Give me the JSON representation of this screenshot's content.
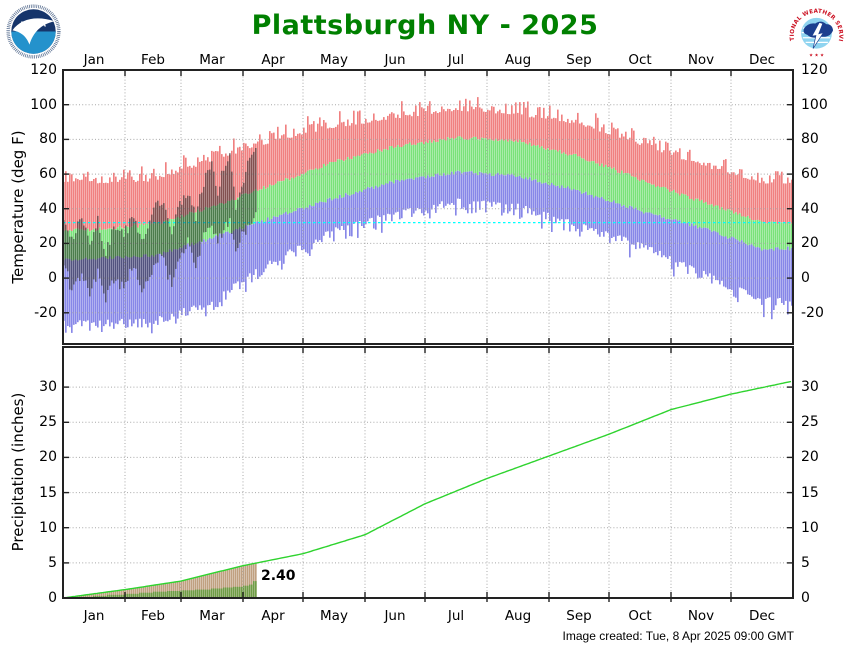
{
  "header": {
    "logo_noaa_alt": "NOAA",
    "logo_nws_alt": "NATIONAL WEATHER SERVICE"
  },
  "footer": {
    "created": "Image created: Tue, 8 Apr 2025 09:00 GMT"
  },
  "months": [
    "Jan",
    "Feb",
    "Mar",
    "Apr",
    "May",
    "Jun",
    "Jul",
    "Aug",
    "Sep",
    "Oct",
    "Nov",
    "Dec"
  ],
  "month_start_days": [
    0,
    31,
    59,
    90,
    120,
    151,
    181,
    212,
    243,
    273,
    304,
    334,
    365
  ],
  "colors": {
    "title": "#008000",
    "record_high_band": "#f08080",
    "normal_band": "#79e279",
    "record_low_band": "#8787e8",
    "observed_temp": "rgba(40,40,40,0.55)",
    "freezing_line": "#00ffff",
    "normal_precip_line": "#2ed32e",
    "normal_precip_fill": "#c0a080",
    "observed_precip_fill": "#6e9d46",
    "grid": "#a8a8a8",
    "frame": "#222222"
  },
  "render_seed": 20250408,
  "chart_data": [
    {
      "type": "area",
      "panel": "temperature",
      "title": "Plattsburgh NY - 2025",
      "xlabel": "",
      "ylabel": "Temperature (deg F)",
      "ylim": [
        -38,
        120
      ],
      "yticks": [
        120,
        100,
        80,
        60,
        40,
        20,
        0,
        -20
      ],
      "grid": true,
      "legend_position": "none",
      "freezing_line_f": 32,
      "monthly_mid_days": [
        15,
        45,
        74,
        105,
        135,
        166,
        196,
        227,
        258,
        288,
        319,
        349
      ],
      "series": [
        {
          "name": "record-high-band",
          "monthly_values": [
            57,
            58,
            70,
            81,
            89,
            94,
            99,
            96,
            91,
            79,
            67,
            57
          ]
        },
        {
          "name": "normal-high",
          "monthly_values": [
            28,
            31,
            41,
            54,
            67,
            76,
            81,
            79,
            70,
            57,
            44,
            32
          ]
        },
        {
          "name": "normal-low",
          "monthly_values": [
            11,
            13,
            23,
            35,
            46,
            56,
            61,
            59,
            50,
            39,
            29,
            17
          ]
        },
        {
          "name": "record-low-band",
          "monthly_values": [
            -27,
            -26,
            -14,
            9,
            26,
            36,
            43,
            40,
            29,
            18,
            2,
            -14
          ]
        },
        {
          "name": "observed-temperature",
          "end_day": 96,
          "anchors_day_low_high": [
            [
              0,
              10,
              30
            ],
            [
              4,
              -8,
              22
            ],
            [
              9,
              2,
              35
            ],
            [
              13,
              -10,
              18
            ],
            [
              17,
              5,
              33
            ],
            [
              21,
              -12,
              15
            ],
            [
              25,
              0,
              28
            ],
            [
              30,
              -5,
              25
            ],
            [
              35,
              8,
              35
            ],
            [
              39,
              -10,
              20
            ],
            [
              44,
              2,
              40
            ],
            [
              49,
              14,
              45
            ],
            [
              54,
              -5,
              28
            ],
            [
              58,
              10,
              42
            ],
            [
              62,
              20,
              48
            ],
            [
              66,
              5,
              35
            ],
            [
              70,
              25,
              55
            ],
            [
              74,
              30,
              67
            ],
            [
              77,
              20,
              50
            ],
            [
              80,
              28,
              65
            ],
            [
              83,
              32,
              70
            ],
            [
              86,
              15,
              40
            ],
            [
              89,
              25,
              52
            ],
            [
              92,
              30,
              68
            ],
            [
              96,
              35,
              74
            ]
          ]
        }
      ]
    },
    {
      "type": "line",
      "panel": "precipitation",
      "title": "",
      "xlabel": "",
      "ylabel": "Precipitation (inches)",
      "ylim": [
        0,
        35.7
      ],
      "yticks": [
        30,
        25,
        20,
        15,
        10,
        5,
        0
      ],
      "grid": true,
      "legend_position": "none",
      "series": [
        {
          "name": "normal-cumulative-line",
          "points_day_inches": [
            [
              0,
              0
            ],
            [
              31,
              1.2
            ],
            [
              59,
              2.4
            ],
            [
              90,
              4.6
            ],
            [
              97,
              5.0
            ],
            [
              120,
              6.3
            ],
            [
              151,
              9.0
            ],
            [
              181,
              13.4
            ],
            [
              212,
              17.0
            ],
            [
              243,
              20.2
            ],
            [
              273,
              23.3
            ],
            [
              304,
              26.8
            ],
            [
              334,
              29.0
            ],
            [
              364,
              30.8
            ]
          ]
        },
        {
          "name": "normal-to-date-fill",
          "end_day": 96
        },
        {
          "name": "observed-cumulative-fill",
          "end_day": 96,
          "total_label": "2.40",
          "steps_day_inches": [
            [
              0,
              0.05
            ],
            [
              8,
              0.15
            ],
            [
              15,
              0.3
            ],
            [
              22,
              0.45
            ],
            [
              31,
              0.6
            ],
            [
              38,
              0.75
            ],
            [
              45,
              0.9
            ],
            [
              52,
              1.0
            ],
            [
              59,
              1.1
            ],
            [
              66,
              1.2
            ],
            [
              74,
              1.35
            ],
            [
              80,
              1.5
            ],
            [
              85,
              1.6
            ],
            [
              90,
              1.75
            ],
            [
              93,
              1.9
            ],
            [
              95,
              2.4
            ]
          ]
        }
      ]
    }
  ]
}
